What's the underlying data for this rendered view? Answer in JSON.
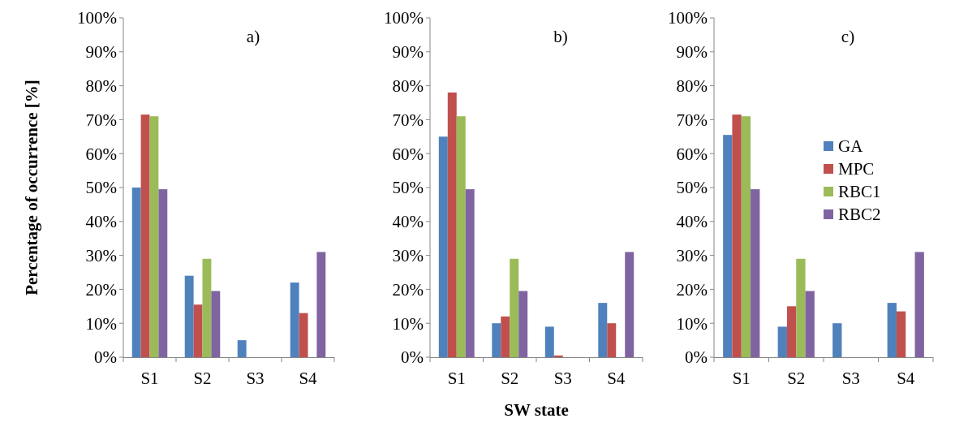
{
  "chart_data": [
    {
      "type": "bar",
      "ylabel": "Percentage of occurrence [%]",
      "annotations": [
        "a)"
      ],
      "categories": [
        "S1",
        "S2",
        "S3",
        "S4"
      ],
      "ylim": [
        0,
        100
      ],
      "yticks": [
        {
          "value": 0,
          "label": "0%"
        },
        {
          "value": 10,
          "label": "10%"
        },
        {
          "value": 20,
          "label": "20%"
        },
        {
          "value": 30,
          "label": "30%"
        },
        {
          "value": 40,
          "label": "40%"
        },
        {
          "value": 50,
          "label": "50%"
        },
        {
          "value": 60,
          "label": "60%"
        },
        {
          "value": 70,
          "label": "70%"
        },
        {
          "value": 80,
          "label": "80%"
        },
        {
          "value": 90,
          "label": "90%"
        },
        {
          "value": 100,
          "label": "100%"
        }
      ],
      "grid": false,
      "legend": false,
      "series": [
        {
          "color": "#4f81bd",
          "values": [
            50,
            24,
            5,
            22
          ]
        },
        {
          "color": "#c0504d",
          "values": [
            71.5,
            15.5,
            0,
            13
          ]
        },
        {
          "color": "#9bbb59",
          "values": [
            71,
            29,
            0,
            0
          ]
        },
        {
          "color": "#8064a2",
          "values": [
            49.5,
            19.5,
            0,
            31
          ]
        }
      ]
    },
    {
      "type": "bar",
      "xlabel": "SW state",
      "annotations": [
        "b)"
      ],
      "categories": [
        "S1",
        "S2",
        "S3",
        "S4"
      ],
      "ylim": [
        0,
        100
      ],
      "yticks": [
        {
          "value": 0,
          "label": "0%"
        },
        {
          "value": 10,
          "label": "10%"
        },
        {
          "value": 20,
          "label": "20%"
        },
        {
          "value": 30,
          "label": "30%"
        },
        {
          "value": 40,
          "label": "40%"
        },
        {
          "value": 50,
          "label": "50%"
        },
        {
          "value": 60,
          "label": "60%"
        },
        {
          "value": 70,
          "label": "70%"
        },
        {
          "value": 80,
          "label": "80%"
        },
        {
          "value": 90,
          "label": "90%"
        },
        {
          "value": 100,
          "label": "100%"
        }
      ],
      "grid": false,
      "legend": false,
      "series": [
        {
          "color": "#4f81bd",
          "values": [
            65,
            10,
            9,
            16
          ]
        },
        {
          "color": "#c0504d",
          "values": [
            78,
            12,
            0.5,
            10
          ]
        },
        {
          "color": "#9bbb59",
          "values": [
            71,
            29,
            0,
            0
          ]
        },
        {
          "color": "#8064a2",
          "values": [
            49.5,
            19.5,
            0,
            31
          ]
        }
      ]
    },
    {
      "type": "bar",
      "annotations": [
        "c)"
      ],
      "categories": [
        "S1",
        "S2",
        "S3",
        "S4"
      ],
      "ylim": [
        0,
        100
      ],
      "yticks": [
        {
          "value": 0,
          "label": "0%"
        },
        {
          "value": 10,
          "label": "10%"
        },
        {
          "value": 20,
          "label": "20%"
        },
        {
          "value": 30,
          "label": "30%"
        },
        {
          "value": 40,
          "label": "40%"
        },
        {
          "value": 50,
          "label": "50%"
        },
        {
          "value": 60,
          "label": "60%"
        },
        {
          "value": 70,
          "label": "70%"
        },
        {
          "value": 80,
          "label": "80%"
        },
        {
          "value": 90,
          "label": "90%"
        },
        {
          "value": 100,
          "label": "100%"
        }
      ],
      "grid": false,
      "legend": "right",
      "series": [
        {
          "name": "GA",
          "color": "#4f81bd",
          "values": [
            65.5,
            9,
            10,
            16
          ]
        },
        {
          "name": "MPC",
          "color": "#c0504d",
          "values": [
            71.5,
            15,
            0,
            13.5
          ]
        },
        {
          "name": "RBC1",
          "color": "#9bbb59",
          "values": [
            71,
            29,
            0,
            0
          ]
        },
        {
          "name": "RBC2",
          "color": "#8064a2",
          "values": [
            49.5,
            19.5,
            0,
            31
          ]
        }
      ]
    }
  ]
}
